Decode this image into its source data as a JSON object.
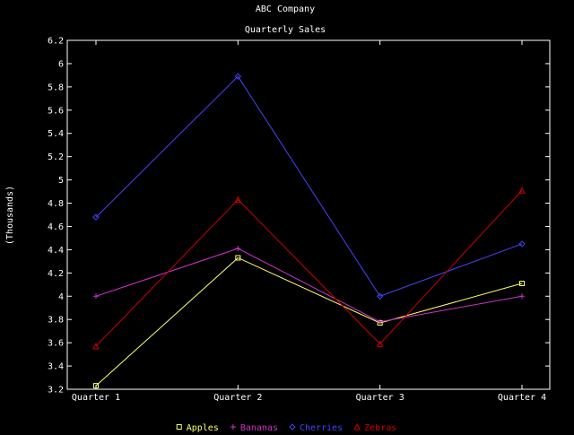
{
  "chart_data": {
    "type": "line",
    "title": "Quarterly Sales",
    "subtitle": "ABC Company",
    "xlabel": "",
    "ylabel": "(Thousands)",
    "categories": [
      "Quarter 1",
      "Quarter 2",
      "Quarter 3",
      "Quarter 4"
    ],
    "ylim": [
      3.2,
      6.2
    ],
    "yticks": [
      "3.2",
      "3.4",
      "3.6",
      "3.8",
      "4",
      "4.2",
      "4.4",
      "4.6",
      "4.8",
      "5",
      "5.2",
      "5.4",
      "5.6",
      "5.8",
      "6",
      "6.2"
    ],
    "grid": false,
    "legend_position": "bottom",
    "background": "#000000",
    "axis_color": "#ffffff",
    "series": [
      {
        "name": "Apples",
        "color": "#ffff66",
        "marker": "square",
        "values": [
          3.23,
          4.33,
          3.77,
          4.11
        ]
      },
      {
        "name": "Bananas",
        "color": "#cc33cc",
        "marker": "plus",
        "values": [
          4.0,
          4.41,
          3.78,
          4.0
        ]
      },
      {
        "name": "Cherries",
        "color": "#4444ff",
        "marker": "diamond",
        "values": [
          4.68,
          5.89,
          4.0,
          4.45
        ]
      },
      {
        "name": "Zebras",
        "color": "#cc0000",
        "marker": "triangle",
        "values": [
          3.57,
          4.83,
          3.59,
          4.91
        ]
      }
    ]
  }
}
